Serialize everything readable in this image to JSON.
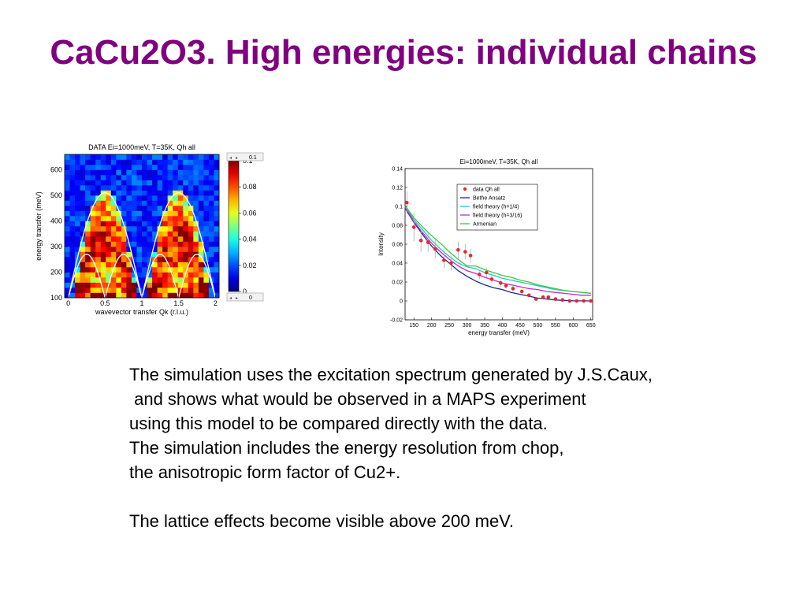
{
  "title": "CaCu2O3. High energies: individual chains",
  "body_lines": [
    "The simulation uses the excitation spectrum generated by J.S.Caux,",
    " and shows what would be observed in a MAPS experiment",
    "using this model to be compared directly with the data.",
    "The simulation includes the energy resolution from chop,",
    "the anisotropic form factor of Cu2+."
  ],
  "body_last": "The lattice effects become visible above 200 meV.",
  "colors": {
    "title": "#800080",
    "text": "#000000"
  },
  "chart_data": [
    {
      "type": "heatmap",
      "title": "DATA Ei=1000meV, T=35K, Qh all",
      "xlabel": "wavevector transfer Qk (r.l.u.)",
      "ylabel": "energy transfer (meV)",
      "xlim": [
        -0.05,
        2.05
      ],
      "ylim": [
        100,
        660
      ],
      "xticks": [
        "0",
        "0.5",
        "1",
        "1.5",
        "2"
      ],
      "yticks": [
        "100",
        "200",
        "300",
        "400",
        "500",
        "600"
      ],
      "colorbar": {
        "min": 0,
        "max": 0.1,
        "ticks": [
          "0",
          "0.02",
          "0.04",
          "0.06",
          "0.08",
          "0.1"
        ],
        "slider_labels": [
          "0.1",
          "0"
        ]
      },
      "overlay_curves": [
        "upper boundary 510·|sin(πQ)|",
        "lower boundary 255·|sin(2πQ)|"
      ]
    },
    {
      "type": "line",
      "title": "Ei=1000meV, T=35K, Qh all",
      "xlabel": "energy transfer (meV)",
      "ylabel": "Intensity",
      "xlim": [
        125,
        655
      ],
      "ylim": [
        -0.02,
        0.14
      ],
      "xticks": [
        "150",
        "200",
        "250",
        "300",
        "350",
        "400",
        "450",
        "500",
        "550",
        "600",
        "650"
      ],
      "yticks": [
        "-0.02",
        "0",
        "0.02",
        "0.04",
        "0.06",
        "0.08",
        "0.1",
        "0.12",
        "0.14"
      ],
      "legend_position": "top-center",
      "data_points": {
        "name": "data Qh all",
        "color": "#e8262e",
        "x": [
          130,
          150,
          170,
          190,
          210,
          235,
          255,
          275,
          295,
          310,
          335,
          355,
          370,
          395,
          410,
          430,
          455,
          475,
          495,
          515,
          530,
          550,
          570,
          590,
          610,
          630,
          650
        ],
        "y": [
          0.104,
          0.078,
          0.064,
          0.062,
          0.055,
          0.043,
          0.04,
          0.054,
          0.052,
          0.048,
          0.028,
          0.03,
          0.023,
          0.019,
          0.016,
          0.013,
          0.01,
          0.006,
          0.002,
          0.004,
          0.004,
          0.002,
          0.001,
          0.0,
          0.0,
          0.0,
          0.0
        ],
        "err": [
          0.012,
          0.015,
          0.012,
          0.01,
          0.01,
          0.008,
          0.008,
          0.009,
          0.008,
          0.007,
          0.005,
          0.005,
          0.004,
          0.004,
          0.003,
          0.003,
          0.003,
          0.002,
          0.002,
          0.002,
          0.002,
          0.002,
          0.001,
          0.001,
          0.001,
          0.001,
          0.001
        ]
      },
      "series": [
        {
          "name": "Bethe Ansatz",
          "color": "#1b2a8c",
          "x": [
            125,
            150,
            175,
            200,
            225,
            250,
            275,
            300,
            325,
            350,
            375,
            400,
            425,
            450,
            475,
            500,
            525,
            550,
            575,
            600,
            625,
            650
          ],
          "y": [
            0.098,
            0.083,
            0.07,
            0.058,
            0.048,
            0.04,
            0.032,
            0.026,
            0.021,
            0.017,
            0.014,
            0.012,
            0.009,
            0.007,
            0.005,
            0.003,
            0.002,
            0.001,
            0.0005,
            0.0002,
            0.0001,
            0.0
          ]
        },
        {
          "name": "field theory (h=1/4)",
          "color": "#22c8c8",
          "x": [
            125,
            150,
            175,
            200,
            225,
            250,
            275,
            300,
            325,
            350,
            375,
            400,
            425,
            450,
            475,
            500,
            525,
            550,
            575,
            600,
            625,
            650
          ],
          "y": [
            0.1,
            0.086,
            0.075,
            0.064,
            0.055,
            0.047,
            0.04,
            0.036,
            0.034,
            0.03,
            0.027,
            0.024,
            0.022,
            0.02,
            0.018,
            0.016,
            0.014,
            0.012,
            0.011,
            0.01,
            0.009,
            0.008
          ]
        },
        {
          "name": "field theory (h=3/16)",
          "color": "#c42cc4",
          "x": [
            125,
            150,
            175,
            200,
            225,
            250,
            275,
            300,
            325,
            350,
            375,
            400,
            425,
            450,
            475,
            500,
            525,
            550,
            575,
            600,
            625,
            650
          ],
          "y": [
            0.099,
            0.084,
            0.072,
            0.061,
            0.052,
            0.044,
            0.037,
            0.032,
            0.029,
            0.025,
            0.022,
            0.019,
            0.017,
            0.015,
            0.013,
            0.012,
            0.01,
            0.009,
            0.008,
            0.007,
            0.006,
            0.006
          ]
        },
        {
          "name": "Armenian",
          "color": "#3cc83c",
          "x": [
            125,
            150,
            175,
            200,
            225,
            250,
            275,
            300,
            325,
            350,
            375,
            400,
            425,
            450,
            475,
            500,
            525,
            550,
            575,
            600,
            625,
            650
          ],
          "y": [
            0.101,
            0.088,
            0.078,
            0.069,
            0.061,
            0.052,
            0.044,
            0.037,
            0.037,
            0.033,
            0.03,
            0.027,
            0.025,
            0.022,
            0.02,
            0.017,
            0.015,
            0.013,
            0.011,
            0.01,
            0.009,
            0.008
          ]
        }
      ]
    }
  ]
}
